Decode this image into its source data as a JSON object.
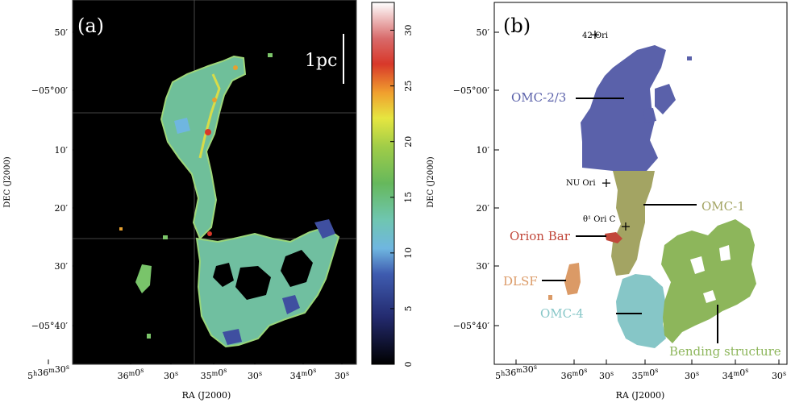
{
  "colors": {
    "panel_a_background": "#000000",
    "omc23": "#5a61aa",
    "omc1": "#a3a463",
    "orion_bar": "#c1473a",
    "dlsf": "#db9a66",
    "omc4": "#86c6c7",
    "bending": "#8db65b"
  },
  "panel_a": {
    "label": "(a)",
    "scalebar_label": "1pc",
    "colorbar_ticks": [
      "0",
      "5",
      "10",
      "15",
      "20",
      "25",
      "30"
    ],
    "colorbar_range": [
      0,
      32.5
    ],
    "y_ticks": [
      "50′",
      "−05°00′",
      "10′",
      "20′",
      "30′",
      "−05°40′"
    ],
    "x_ticks": [
      "5h36m30s",
      "36m0s",
      "30s",
      "35m0s",
      "30s",
      "34m0s",
      "30s"
    ],
    "xlabel": "RA (J2000)",
    "ylabel": "DEC (J2000)"
  },
  "panel_b": {
    "label": "(b)",
    "y_ticks": [
      "50′",
      "−05°00′",
      "10′",
      "20′",
      "30′",
      "−05°40′"
    ],
    "x_ticks": [
      "5h36m30s",
      "36m0s",
      "30s",
      "35m0s",
      "30s",
      "34m0s",
      "30s"
    ],
    "xlabel": "RA (J2000)",
    "ylabel": "DEC (J2000)",
    "stars": {
      "ori42": "42 Ori",
      "nu_ori": "NU Ori",
      "theta1_ori_c": "θ¹ Ori C"
    },
    "regions": {
      "omc23": "OMC-2/3",
      "omc1": "OMC-1",
      "orion_bar": "Orion Bar",
      "dlsf": "DLSF",
      "omc4": "OMC-4",
      "bending": "Bending structure"
    }
  }
}
